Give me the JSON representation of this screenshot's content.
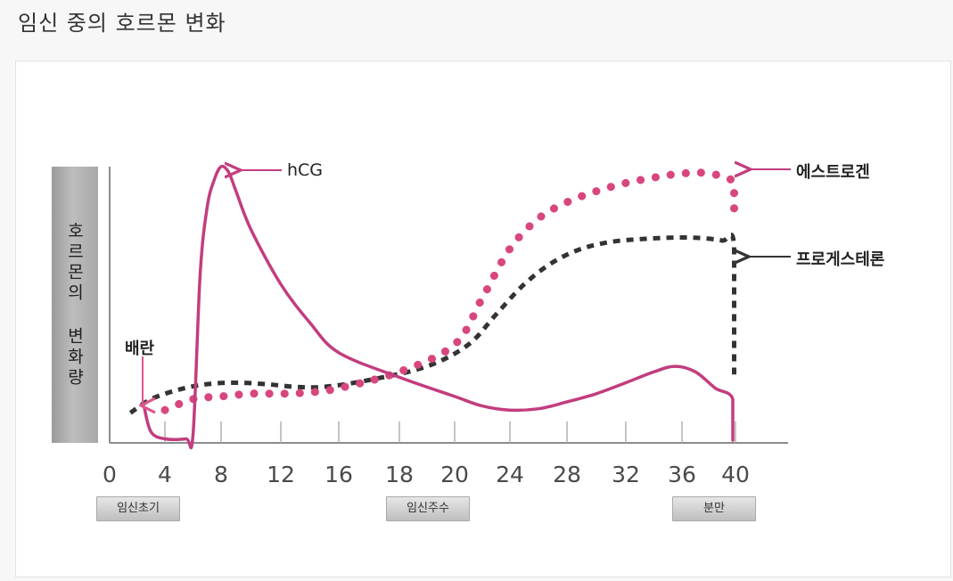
{
  "page": {
    "title": "임신 중의 호르몬 변화"
  },
  "chart_data": {
    "type": "line",
    "ylabel": "호르몬의 변화량",
    "x_ticks": [
      0,
      4,
      8,
      12,
      16,
      18,
      20,
      24,
      28,
      32,
      36,
      40
    ],
    "x_tick_labels": [
      "0",
      "4",
      "8",
      "12",
      "16",
      "18",
      "20",
      "24",
      "28",
      "32",
      "36",
      "40"
    ],
    "phases": [
      "임신초기",
      "임신주수",
      "분만"
    ],
    "annotations": {
      "ovulation": "배란",
      "hcg": "hCG",
      "estrogen": "에스트로겐",
      "progesterone": "프로게스테론"
    },
    "y_unit": "relative level (0-100)",
    "ylim": [
      0,
      100
    ],
    "grid": false,
    "series": [
      {
        "name": "hCG",
        "style": "solid",
        "color": "#c23d7e",
        "x": [
          2.5,
          3,
          4,
          5.5,
          6,
          6.5,
          7,
          7.5,
          8,
          8.5,
          9,
          10,
          12,
          14,
          16,
          18,
          20,
          22,
          24,
          26,
          28,
          30,
          32,
          34,
          35.5,
          37,
          38.5,
          39.8,
          39.8
        ],
        "y": [
          12,
          3,
          0.5,
          0.5,
          2,
          60,
          85,
          95,
          100,
          98,
          91,
          77,
          57,
          43,
          32,
          23,
          16,
          12.5,
          11,
          11.5,
          14,
          17,
          21,
          25,
          27,
          25,
          19,
          15,
          0
        ]
      },
      {
        "name": "에스트로겐",
        "style": "dotted",
        "color": "#d8467e",
        "x": [
          4,
          6,
          8,
          10,
          12,
          14,
          16,
          18,
          20,
          22,
          24,
          26,
          28,
          30,
          32,
          34,
          36,
          38,
          39.9,
          39.9
        ],
        "y": [
          11,
          15,
          16,
          17,
          17,
          17.5,
          19,
          25,
          35,
          52,
          70,
          81,
          87,
          91,
          94,
          96,
          97.5,
          97.5,
          94,
          82
        ]
      },
      {
        "name": "프로게스테론",
        "style": "dashed",
        "color": "#333333",
        "x": [
          1.5,
          3,
          5,
          7,
          9,
          11,
          13,
          15,
          17,
          19,
          21,
          23,
          25,
          27,
          29,
          31,
          33,
          35,
          37,
          39,
          39.9,
          39.9
        ],
        "y": [
          10,
          15,
          18.5,
          20.5,
          21,
          20.5,
          19.5,
          19.5,
          22,
          27,
          35,
          46,
          57,
          65,
          70,
          72.5,
          73.5,
          74,
          74,
          73,
          71,
          24
        ]
      }
    ]
  }
}
